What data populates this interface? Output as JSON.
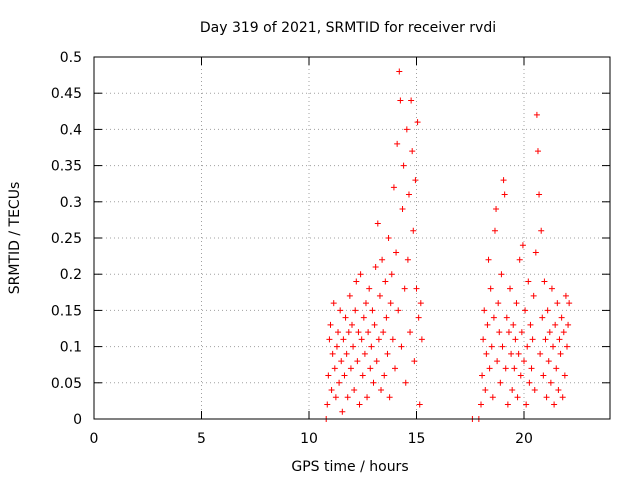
{
  "chart_data": {
    "type": "scatter",
    "title": "Day 319 of 2021, SRMTID for receiver rvdi",
    "xlabel": "GPS time / hours",
    "ylabel": "SRMTID / TECUs",
    "xlim": [
      0,
      24
    ],
    "ylim": [
      0,
      0.5
    ],
    "x_ticks": [
      "0",
      "5",
      "10",
      "15",
      "20"
    ],
    "y_ticks": [
      "0",
      "0.05",
      "0.1",
      "0.15",
      "0.2",
      "0.25",
      "0.3",
      "0.35",
      "0.4",
      "0.45",
      "0.5"
    ],
    "grid": true,
    "marker": "+",
    "series_color": "#ff0000",
    "series": [
      {
        "points": [
          [
            10.8,
            0.0
          ],
          [
            10.85,
            0.02
          ],
          [
            10.9,
            0.06
          ],
          [
            10.95,
            0.11
          ],
          [
            11.0,
            0.13
          ],
          [
            11.05,
            0.04
          ],
          [
            11.1,
            0.09
          ],
          [
            11.15,
            0.16
          ],
          [
            11.2,
            0.07
          ],
          [
            11.25,
            0.03
          ],
          [
            11.3,
            0.1
          ],
          [
            11.35,
            0.12
          ],
          [
            11.4,
            0.05
          ],
          [
            11.45,
            0.15
          ],
          [
            11.5,
            0.08
          ],
          [
            11.55,
            0.01
          ],
          [
            11.6,
            0.11
          ],
          [
            11.65,
            0.06
          ],
          [
            11.7,
            0.14
          ],
          [
            11.75,
            0.09
          ],
          [
            11.8,
            0.03
          ],
          [
            11.85,
            0.12
          ],
          [
            11.9,
            0.17
          ],
          [
            11.95,
            0.07
          ],
          [
            12.0,
            0.13
          ],
          [
            12.05,
            0.1
          ],
          [
            12.1,
            0.04
          ],
          [
            12.15,
            0.15
          ],
          [
            12.2,
            0.19
          ],
          [
            12.25,
            0.08
          ],
          [
            12.3,
            0.12
          ],
          [
            12.35,
            0.02
          ],
          [
            12.4,
            0.2
          ],
          [
            12.45,
            0.11
          ],
          [
            12.5,
            0.06
          ],
          [
            12.55,
            0.14
          ],
          [
            12.6,
            0.09
          ],
          [
            12.65,
            0.16
          ],
          [
            12.7,
            0.03
          ],
          [
            12.75,
            0.12
          ],
          [
            12.8,
            0.18
          ],
          [
            12.85,
            0.07
          ],
          [
            12.9,
            0.1
          ],
          [
            12.95,
            0.15
          ],
          [
            13.0,
            0.05
          ],
          [
            13.05,
            0.13
          ],
          [
            13.1,
            0.21
          ],
          [
            13.15,
            0.08
          ],
          [
            13.2,
            0.27
          ],
          [
            13.25,
            0.11
          ],
          [
            13.3,
            0.17
          ],
          [
            13.35,
            0.04
          ],
          [
            13.4,
            0.22
          ],
          [
            13.45,
            0.12
          ],
          [
            13.5,
            0.06
          ],
          [
            13.55,
            0.19
          ],
          [
            13.6,
            0.14
          ],
          [
            13.65,
            0.09
          ],
          [
            13.7,
            0.25
          ],
          [
            13.75,
            0.03
          ],
          [
            13.8,
            0.16
          ],
          [
            13.85,
            0.2
          ],
          [
            13.9,
            0.11
          ],
          [
            13.95,
            0.32
          ],
          [
            14.0,
            0.07
          ],
          [
            14.05,
            0.23
          ],
          [
            14.1,
            0.38
          ],
          [
            14.15,
            0.15
          ],
          [
            14.2,
            0.48
          ],
          [
            14.25,
            0.44
          ],
          [
            14.3,
            0.1
          ],
          [
            14.35,
            0.29
          ],
          [
            14.4,
            0.35
          ],
          [
            14.45,
            0.18
          ],
          [
            14.5,
            0.05
          ],
          [
            14.55,
            0.4
          ],
          [
            14.6,
            0.22
          ],
          [
            14.65,
            0.31
          ],
          [
            14.7,
            0.12
          ],
          [
            14.75,
            0.44
          ],
          [
            14.8,
            0.37
          ],
          [
            14.85,
            0.26
          ],
          [
            14.9,
            0.08
          ],
          [
            14.95,
            0.33
          ],
          [
            15.0,
            0.18
          ],
          [
            15.05,
            0.41
          ],
          [
            15.1,
            0.14
          ],
          [
            15.15,
            0.02
          ],
          [
            15.2,
            0.16
          ],
          [
            15.25,
            0.11
          ],
          [
            17.6,
            0.0
          ],
          [
            17.9,
            0.0
          ],
          [
            18.0,
            0.02
          ],
          [
            18.05,
            0.06
          ],
          [
            18.1,
            0.11
          ],
          [
            18.15,
            0.15
          ],
          [
            18.2,
            0.04
          ],
          [
            18.25,
            0.09
          ],
          [
            18.3,
            0.13
          ],
          [
            18.35,
            0.22
          ],
          [
            18.4,
            0.07
          ],
          [
            18.45,
            0.18
          ],
          [
            18.5,
            0.1
          ],
          [
            18.55,
            0.03
          ],
          [
            18.6,
            0.14
          ],
          [
            18.65,
            0.26
          ],
          [
            18.7,
            0.29
          ],
          [
            18.75,
            0.08
          ],
          [
            18.8,
            0.16
          ],
          [
            18.85,
            0.12
          ],
          [
            18.9,
            0.05
          ],
          [
            18.95,
            0.2
          ],
          [
            19.0,
            0.1
          ],
          [
            19.05,
            0.33
          ],
          [
            19.1,
            0.31
          ],
          [
            19.15,
            0.07
          ],
          [
            19.2,
            0.14
          ],
          [
            19.25,
            0.02
          ],
          [
            19.3,
            0.12
          ],
          [
            19.35,
            0.18
          ],
          [
            19.4,
            0.09
          ],
          [
            19.45,
            0.04
          ],
          [
            19.5,
            0.13
          ],
          [
            19.55,
            0.07
          ],
          [
            19.6,
            0.11
          ],
          [
            19.65,
            0.16
          ],
          [
            19.7,
            0.03
          ],
          [
            19.75,
            0.09
          ],
          [
            19.8,
            0.22
          ],
          [
            19.85,
            0.06
          ],
          [
            19.9,
            0.12
          ],
          [
            19.95,
            0.24
          ],
          [
            20.0,
            0.08
          ],
          [
            20.05,
            0.15
          ],
          [
            20.1,
            0.02
          ],
          [
            20.15,
            0.1
          ],
          [
            20.2,
            0.19
          ],
          [
            20.25,
            0.05
          ],
          [
            20.3,
            0.13
          ],
          [
            20.35,
            0.07
          ],
          [
            20.4,
            0.11
          ],
          [
            20.45,
            0.17
          ],
          [
            20.5,
            0.04
          ],
          [
            20.55,
            0.23
          ],
          [
            20.6,
            0.42
          ],
          [
            20.65,
            0.37
          ],
          [
            20.7,
            0.31
          ],
          [
            20.75,
            0.09
          ],
          [
            20.8,
            0.26
          ],
          [
            20.85,
            0.14
          ],
          [
            20.9,
            0.06
          ],
          [
            20.95,
            0.19
          ],
          [
            21.0,
            0.11
          ],
          [
            21.05,
            0.03
          ],
          [
            21.1,
            0.15
          ],
          [
            21.15,
            0.08
          ],
          [
            21.2,
            0.12
          ],
          [
            21.25,
            0.05
          ],
          [
            21.3,
            0.18
          ],
          [
            21.35,
            0.1
          ],
          [
            21.4,
            0.02
          ],
          [
            21.45,
            0.13
          ],
          [
            21.5,
            0.07
          ],
          [
            21.55,
            0.16
          ],
          [
            21.6,
            0.04
          ],
          [
            21.65,
            0.11
          ],
          [
            21.7,
            0.09
          ],
          [
            21.75,
            0.14
          ],
          [
            21.8,
            0.03
          ],
          [
            21.85,
            0.12
          ],
          [
            21.9,
            0.06
          ],
          [
            21.95,
            0.17
          ],
          [
            22.0,
            0.1
          ],
          [
            22.05,
            0.13
          ],
          [
            22.1,
            0.16
          ]
        ]
      }
    ]
  }
}
